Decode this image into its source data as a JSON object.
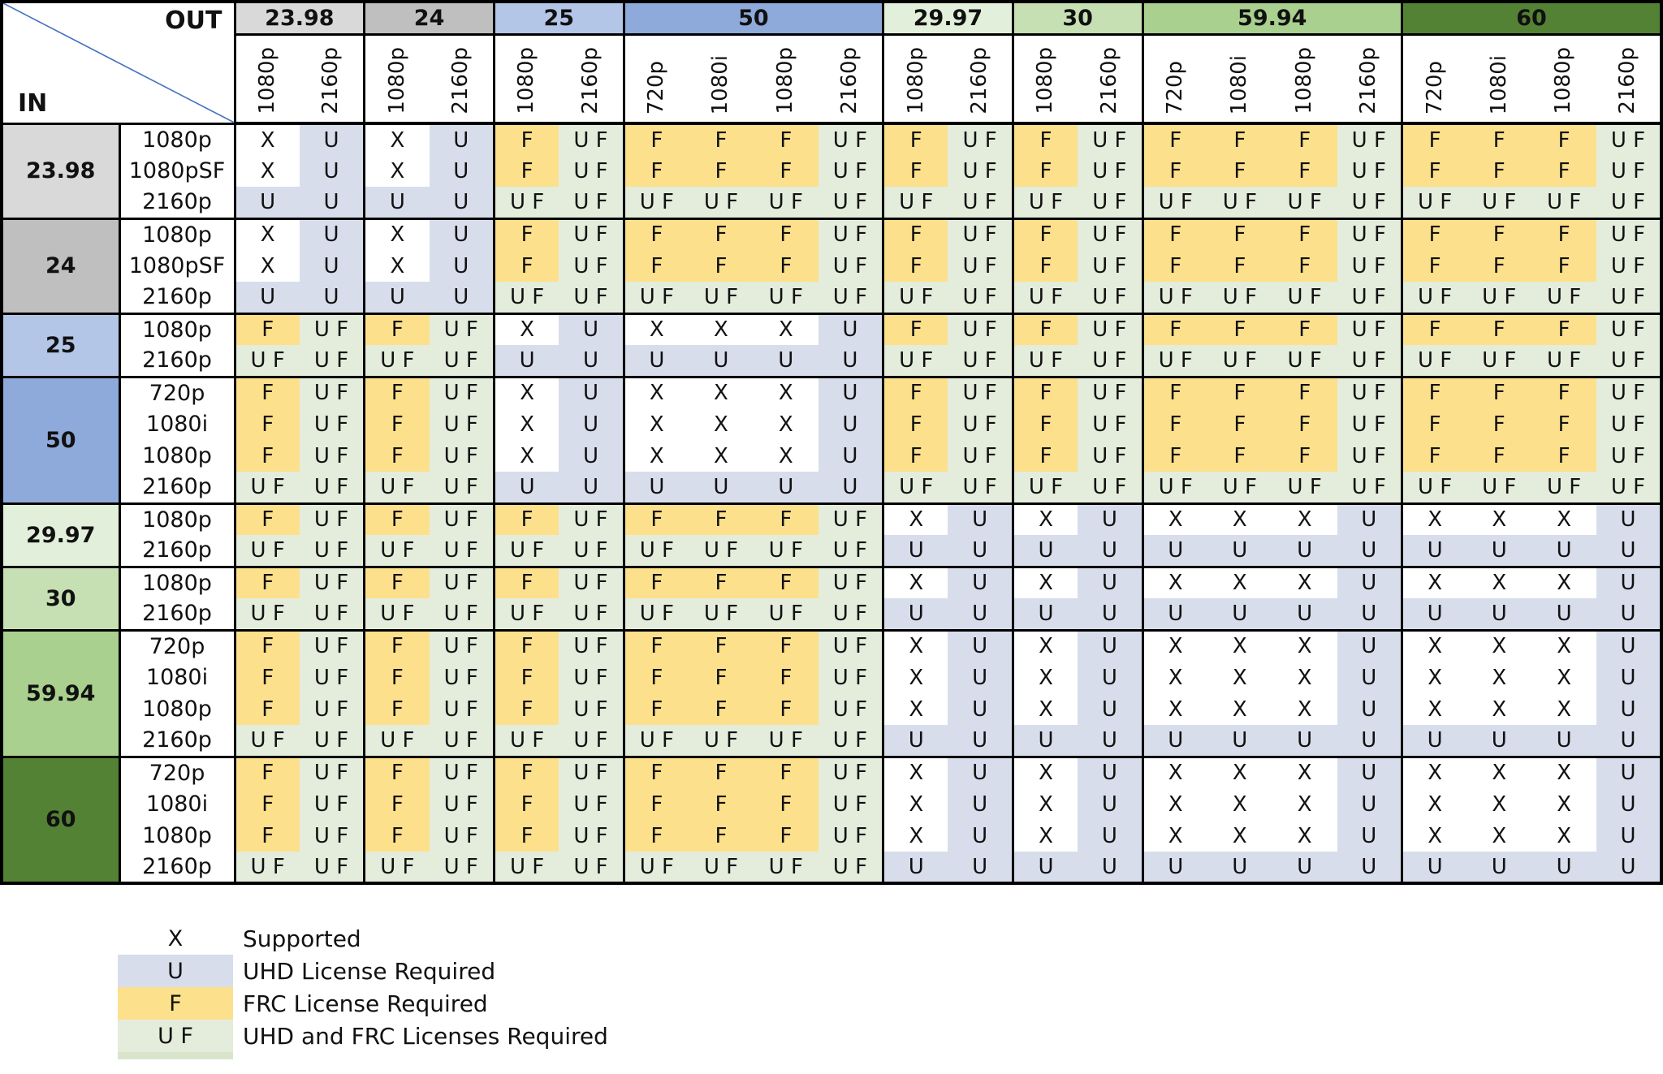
{
  "corner": {
    "out_label": "OUT",
    "in_label": "IN"
  },
  "palette": {
    "grid_line": "#000000",
    "diagonal_line": "#4472c4",
    "cell_x_bg": "#ffffff",
    "cell_u_bg": "#d7ddeb",
    "cell_f_bg": "#fce08c",
    "cell_uf_bg": "#e4ecdc"
  },
  "out_groups": [
    {
      "label": "23.98",
      "color": "#d9d9d9",
      "cols": [
        "1080p",
        "2160p"
      ]
    },
    {
      "label": "24",
      "color": "#bfbfbf",
      "cols": [
        "1080p",
        "2160p"
      ]
    },
    {
      "label": "25",
      "color": "#b4c6e7",
      "cols": [
        "1080p",
        "2160p"
      ]
    },
    {
      "label": "50",
      "color": "#8eaadb",
      "cols": [
        "720p",
        "1080i",
        "1080p",
        "2160p"
      ]
    },
    {
      "label": "29.97",
      "color": "#e2efda",
      "cols": [
        "1080p",
        "2160p"
      ]
    },
    {
      "label": "30",
      "color": "#c6e0b4",
      "cols": [
        "1080p",
        "2160p"
      ]
    },
    {
      "label": "59.94",
      "color": "#a9d08e",
      "cols": [
        "720p",
        "1080i",
        "1080p",
        "2160p"
      ]
    },
    {
      "label": "60",
      "color": "#548235",
      "cols": [
        "720p",
        "1080i",
        "1080p",
        "2160p"
      ]
    }
  ],
  "in_groups": [
    {
      "label": "23.98",
      "color": "#d9d9d9",
      "rows": [
        {
          "res": "1080p",
          "cells": [
            "X",
            "U",
            "X",
            "U",
            "F",
            "U F",
            "F",
            "F",
            "F",
            "U F",
            "F",
            "U F",
            "F",
            "U F",
            "F",
            "F",
            "F",
            "U F",
            "F",
            "F",
            "F",
            "U F"
          ]
        },
        {
          "res": "1080pSF",
          "cells": [
            "X",
            "U",
            "X",
            "U",
            "F",
            "U F",
            "F",
            "F",
            "F",
            "U F",
            "F",
            "U F",
            "F",
            "U F",
            "F",
            "F",
            "F",
            "U F",
            "F",
            "F",
            "F",
            "U F"
          ]
        },
        {
          "res": "2160p",
          "cells": [
            "U",
            "U",
            "U",
            "U",
            "U F",
            "U F",
            "U F",
            "U F",
            "U F",
            "U F",
            "U F",
            "U F",
            "U F",
            "U F",
            "U F",
            "U F",
            "U F",
            "U F",
            "U F",
            "U F",
            "U F",
            "U F"
          ]
        }
      ]
    },
    {
      "label": "24",
      "color": "#bfbfbf",
      "rows": [
        {
          "res": "1080p",
          "cells": [
            "X",
            "U",
            "X",
            "U",
            "F",
            "U F",
            "F",
            "F",
            "F",
            "U F",
            "F",
            "U F",
            "F",
            "U F",
            "F",
            "F",
            "F",
            "U F",
            "F",
            "F",
            "F",
            "U F"
          ]
        },
        {
          "res": "1080pSF",
          "cells": [
            "X",
            "U",
            "X",
            "U",
            "F",
            "U F",
            "F",
            "F",
            "F",
            "U F",
            "F",
            "U F",
            "F",
            "U F",
            "F",
            "F",
            "F",
            "U F",
            "F",
            "F",
            "F",
            "U F"
          ]
        },
        {
          "res": "2160p",
          "cells": [
            "U",
            "U",
            "U",
            "U",
            "U F",
            "U F",
            "U F",
            "U F",
            "U F",
            "U F",
            "U F",
            "U F",
            "U F",
            "U F",
            "U F",
            "U F",
            "U F",
            "U F",
            "U F",
            "U F",
            "U F",
            "U F"
          ]
        }
      ]
    },
    {
      "label": "25",
      "color": "#b4c6e7",
      "rows": [
        {
          "res": "1080p",
          "cells": [
            "F",
            "U F",
            "F",
            "U F",
            "X",
            "U",
            "X",
            "X",
            "X",
            "U",
            "F",
            "U F",
            "F",
            "U F",
            "F",
            "F",
            "F",
            "U F",
            "F",
            "F",
            "F",
            "U F"
          ]
        },
        {
          "res": "2160p",
          "cells": [
            "U F",
            "U F",
            "U F",
            "U F",
            "U",
            "U",
            "U",
            "U",
            "U",
            "U",
            "U F",
            "U F",
            "U F",
            "U F",
            "U F",
            "U F",
            "U F",
            "U F",
            "U F",
            "U F",
            "U F",
            "U F"
          ]
        }
      ]
    },
    {
      "label": "50",
      "color": "#8eaadb",
      "rows": [
        {
          "res": "720p",
          "cells": [
            "F",
            "U F",
            "F",
            "U F",
            "X",
            "U",
            "X",
            "X",
            "X",
            "U",
            "F",
            "U F",
            "F",
            "U F",
            "F",
            "F",
            "F",
            "U F",
            "F",
            "F",
            "F",
            "U F"
          ]
        },
        {
          "res": "1080i",
          "cells": [
            "F",
            "U F",
            "F",
            "U F",
            "X",
            "U",
            "X",
            "X",
            "X",
            "U",
            "F",
            "U F",
            "F",
            "U F",
            "F",
            "F",
            "F",
            "U F",
            "F",
            "F",
            "F",
            "U F"
          ]
        },
        {
          "res": "1080p",
          "cells": [
            "F",
            "U F",
            "F",
            "U F",
            "X",
            "U",
            "X",
            "X",
            "X",
            "U",
            "F",
            "U F",
            "F",
            "U F",
            "F",
            "F",
            "F",
            "U F",
            "F",
            "F",
            "F",
            "U F"
          ]
        },
        {
          "res": "2160p",
          "cells": [
            "U F",
            "U F",
            "U F",
            "U F",
            "U",
            "U",
            "U",
            "U",
            "U",
            "U",
            "U F",
            "U F",
            "U F",
            "U F",
            "U F",
            "U F",
            "U F",
            "U F",
            "U F",
            "U F",
            "U F",
            "U F"
          ]
        }
      ]
    },
    {
      "label": "29.97",
      "color": "#e2efda",
      "rows": [
        {
          "res": "1080p",
          "cells": [
            "F",
            "U F",
            "F",
            "U F",
            "F",
            "U F",
            "F",
            "F",
            "F",
            "U F",
            "X",
            "U",
            "X",
            "U",
            "X",
            "X",
            "X",
            "U",
            "X",
            "X",
            "X",
            "U"
          ]
        },
        {
          "res": "2160p",
          "cells": [
            "U F",
            "U F",
            "U F",
            "U F",
            "U F",
            "U F",
            "U F",
            "U F",
            "U F",
            "U F",
            "U",
            "U",
            "U",
            "U",
            "U",
            "U",
            "U",
            "U",
            "U",
            "U",
            "U",
            "U"
          ]
        }
      ]
    },
    {
      "label": "30",
      "color": "#c6e0b4",
      "rows": [
        {
          "res": "1080p",
          "cells": [
            "F",
            "U F",
            "F",
            "U F",
            "F",
            "U F",
            "F",
            "F",
            "F",
            "U F",
            "X",
            "U",
            "X",
            "U",
            "X",
            "X",
            "X",
            "U",
            "X",
            "X",
            "X",
            "U"
          ]
        },
        {
          "res": "2160p",
          "cells": [
            "U F",
            "U F",
            "U F",
            "U F",
            "U F",
            "U F",
            "U F",
            "U F",
            "U F",
            "U F",
            "U",
            "U",
            "U",
            "U",
            "U",
            "U",
            "U",
            "U",
            "U",
            "U",
            "U",
            "U"
          ]
        }
      ]
    },
    {
      "label": "59.94",
      "color": "#a9d08e",
      "rows": [
        {
          "res": "720p",
          "cells": [
            "F",
            "U F",
            "F",
            "U F",
            "F",
            "U F",
            "F",
            "F",
            "F",
            "U F",
            "X",
            "U",
            "X",
            "U",
            "X",
            "X",
            "X",
            "U",
            "X",
            "X",
            "X",
            "U"
          ]
        },
        {
          "res": "1080i",
          "cells": [
            "F",
            "U F",
            "F",
            "U F",
            "F",
            "U F",
            "F",
            "F",
            "F",
            "U F",
            "X",
            "U",
            "X",
            "U",
            "X",
            "X",
            "X",
            "U",
            "X",
            "X",
            "X",
            "U"
          ]
        },
        {
          "res": "1080p",
          "cells": [
            "F",
            "U F",
            "F",
            "U F",
            "F",
            "U F",
            "F",
            "F",
            "F",
            "U F",
            "X",
            "U",
            "X",
            "U",
            "X",
            "X",
            "X",
            "U",
            "X",
            "X",
            "X",
            "U"
          ]
        },
        {
          "res": "2160p",
          "cells": [
            "U F",
            "U F",
            "U F",
            "U F",
            "U F",
            "U F",
            "U F",
            "U F",
            "U F",
            "U F",
            "U",
            "U",
            "U",
            "U",
            "U",
            "U",
            "U",
            "U",
            "U",
            "U",
            "U",
            "U"
          ]
        }
      ]
    },
    {
      "label": "60",
      "color": "#548235",
      "rows": [
        {
          "res": "720p",
          "cells": [
            "F",
            "U F",
            "F",
            "U F",
            "F",
            "U F",
            "F",
            "F",
            "F",
            "U F",
            "X",
            "U",
            "X",
            "U",
            "X",
            "X",
            "X",
            "U",
            "X",
            "X",
            "X",
            "U"
          ]
        },
        {
          "res": "1080i",
          "cells": [
            "F",
            "U F",
            "F",
            "U F",
            "F",
            "U F",
            "F",
            "F",
            "F",
            "U F",
            "X",
            "U",
            "X",
            "U",
            "X",
            "X",
            "X",
            "U",
            "X",
            "X",
            "X",
            "U"
          ]
        },
        {
          "res": "1080p",
          "cells": [
            "F",
            "U F",
            "F",
            "U F",
            "F",
            "U F",
            "F",
            "F",
            "F",
            "U F",
            "X",
            "U",
            "X",
            "U",
            "X",
            "X",
            "X",
            "U",
            "X",
            "X",
            "X",
            "U"
          ]
        },
        {
          "res": "2160p",
          "cells": [
            "U F",
            "U F",
            "U F",
            "U F",
            "U F",
            "U F",
            "U F",
            "U F",
            "U F",
            "U F",
            "U",
            "U",
            "U",
            "U",
            "U",
            "U",
            "U",
            "U",
            "U",
            "U",
            "U",
            "U"
          ]
        }
      ]
    }
  ],
  "legend": {
    "items": [
      {
        "symbol": "X",
        "bg": "#ffffff",
        "label": "Supported"
      },
      {
        "symbol": "U",
        "bg": "#d7ddeb",
        "label": "UHD License Required"
      },
      {
        "symbol": "F",
        "bg": "#fce08c",
        "label": "FRC License Required"
      },
      {
        "symbol": "U F",
        "bg": "#e4ecdc",
        "label": "UHD and FRC Licenses Required"
      }
    ]
  }
}
